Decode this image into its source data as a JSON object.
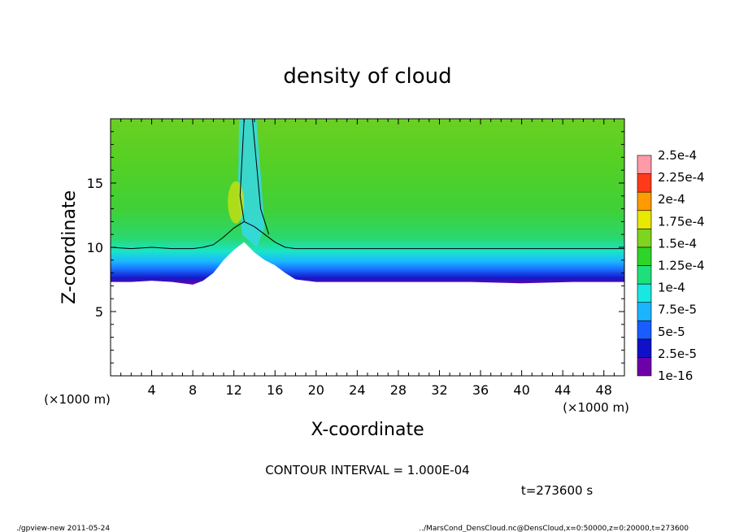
{
  "chart_data": {
    "type": "heatmap",
    "title": "density of cloud",
    "xlabel": "X-coordinate",
    "ylabel": "Z-coordinate",
    "x_unit": "(×1000 m)",
    "y_unit": "(×1000 m)",
    "xlim": [
      0,
      50
    ],
    "ylim": [
      0,
      20
    ],
    "x_ticks": [
      4,
      8,
      12,
      16,
      20,
      24,
      28,
      32,
      36,
      40,
      44,
      48
    ],
    "y_ticks": [
      5,
      10,
      15
    ],
    "colorbar_levels": [
      "1e-16",
      "2.5e-5",
      "5e-5",
      "7.5e-5",
      "1e-4",
      "1.25e-4",
      "1.5e-4",
      "1.75e-4",
      "2e-4",
      "2.25e-4",
      "2.5e-4"
    ],
    "colorbar_colors": [
      "#6d00a8",
      "#1010c8",
      "#1a5cff",
      "#1ab4ff",
      "#18e8e0",
      "#1ee07a",
      "#2fd42a",
      "#7ed41e",
      "#e8e800",
      "#ff9a00",
      "#ff3a1a",
      "#ff9aa8"
    ],
    "cloud_base_profile": {
      "x": [
        0,
        2,
        4,
        6,
        8,
        9,
        10,
        11,
        12,
        13,
        14,
        15,
        16,
        17,
        18,
        20,
        25,
        30,
        35,
        40,
        45,
        50
      ],
      "base_z": [
        7.3,
        7.3,
        7.4,
        7.3,
        7.1,
        7.4,
        8.0,
        9.0,
        9.8,
        10.4,
        9.6,
        9.0,
        8.6,
        8.0,
        7.5,
        7.3,
        7.3,
        7.3,
        7.3,
        7.2,
        7.3,
        7.3
      ],
      "contour_z": [
        10.0,
        9.9,
        10.0,
        9.9,
        9.9,
        10.0,
        10.2,
        10.8,
        11.5,
        12.0,
        11.6,
        11.0,
        10.4,
        10.0,
        9.9,
        9.9,
        9.9,
        9.9,
        9.9,
        9.9,
        9.9,
        9.9
      ]
    },
    "contour_interval_text": "CONTOUR INTERVAL = 1.000E-04",
    "time_text": "t=273600  s"
  },
  "footer": {
    "left": "./gpview-new  2011-05-24",
    "right": "../MarsCond_DensCloud.nc@DensCloud,x=0:50000,z=0:20000,t=273600"
  }
}
